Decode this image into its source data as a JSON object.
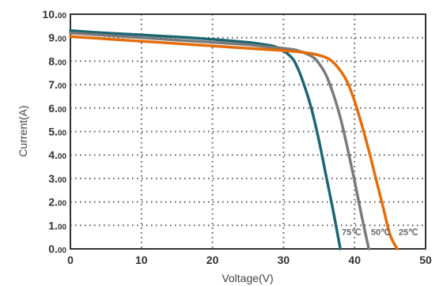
{
  "chart_data": {
    "type": "line",
    "xlabel": "Voltage(V)",
    "ylabel": "Current(A)",
    "xlim": [
      0,
      50
    ],
    "ylim": [
      0,
      10
    ],
    "grid": true,
    "x_ticks": [
      "0",
      "10",
      "20",
      "30",
      "40",
      "50"
    ],
    "y_ticks": [
      {
        "int": "0.",
        "dec": "00"
      },
      {
        "int": "1.",
        "dec": "00"
      },
      {
        "int": "2.",
        "dec": "00"
      },
      {
        "int": "3.",
        "dec": "00"
      },
      {
        "int": "4.",
        "dec": "00"
      },
      {
        "int": "5.",
        "dec": "00"
      },
      {
        "int": "6.",
        "dec": "00"
      },
      {
        "int": "7.",
        "dec": "00"
      },
      {
        "int": "8.",
        "dec": "00"
      },
      {
        "int": "9.",
        "dec": "00"
      },
      {
        "int": "10.",
        "dec": "00"
      }
    ],
    "series": [
      {
        "name": "75℃",
        "color": "#1d6672",
        "x": [
          0,
          5,
          10,
          15,
          20,
          25,
          27,
          29,
          31,
          32,
          33,
          34,
          35,
          36,
          37,
          38
        ],
        "y": [
          9.3,
          9.2,
          9.12,
          9.03,
          8.93,
          8.8,
          8.72,
          8.6,
          8.2,
          7.7,
          6.9,
          5.9,
          4.6,
          3.1,
          1.6,
          0
        ]
      },
      {
        "name": "50℃",
        "color": "#7a7a7a",
        "x": [
          0,
          5,
          10,
          15,
          20,
          25,
          28,
          30,
          32,
          34,
          35,
          36,
          37,
          38,
          39,
          40,
          41,
          42
        ],
        "y": [
          9.2,
          9.1,
          9.0,
          8.9,
          8.8,
          8.7,
          8.6,
          8.55,
          8.45,
          8.2,
          7.9,
          7.4,
          6.6,
          5.6,
          4.3,
          2.9,
          1.4,
          0
        ]
      },
      {
        "name": "25℃",
        "color": "#e46c0a",
        "x": [
          0,
          5,
          10,
          15,
          20,
          25,
          30,
          32,
          34,
          36,
          37,
          38,
          39,
          40,
          41,
          42,
          43,
          44,
          45,
          46
        ],
        "y": [
          9.05,
          8.95,
          8.85,
          8.75,
          8.65,
          8.55,
          8.45,
          8.4,
          8.32,
          8.15,
          7.95,
          7.6,
          7.1,
          6.3,
          5.3,
          4.2,
          3.0,
          1.8,
          0.6,
          0
        ]
      }
    ],
    "series_labels": [
      {
        "series": 0,
        "text": "75℃",
        "x": 38.2,
        "y": 0.72
      },
      {
        "series": 1,
        "text": "50℃",
        "x": 42.3,
        "y": 0.72
      },
      {
        "series": 2,
        "text": "25℃",
        "x": 46.2,
        "y": 0.72
      }
    ]
  }
}
